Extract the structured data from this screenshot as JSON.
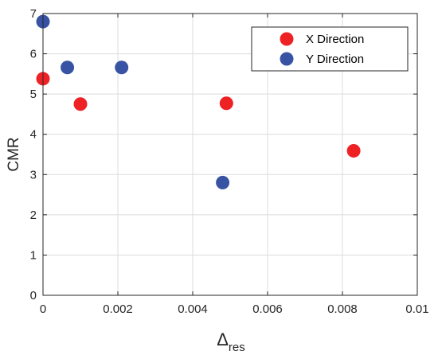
{
  "chart_data": {
    "type": "scatter",
    "xlabel_main": "Δ",
    "xlabel_sub": "res",
    "ylabel": "CMR",
    "xlim": [
      0,
      0.01
    ],
    "ylim": [
      0,
      7
    ],
    "x_ticks": [
      "0",
      "0.002",
      "0.004",
      "0.006",
      "0.008",
      "0.01"
    ],
    "y_ticks": [
      "0",
      "1",
      "2",
      "3",
      "4",
      "5",
      "6",
      "7"
    ],
    "x_tick_values": [
      0,
      0.002,
      0.004,
      0.006,
      0.008,
      0.01
    ],
    "y_tick_values": [
      0,
      1,
      2,
      3,
      4,
      5,
      6,
      7
    ],
    "grid": true,
    "legend_position": "top-right",
    "series": [
      {
        "name": "X Direction",
        "color": "#ee2125",
        "points": [
          {
            "x": 0.0,
            "y": 5.38
          },
          {
            "x": 0.001,
            "y": 4.75
          },
          {
            "x": 0.0049,
            "y": 4.77
          },
          {
            "x": 0.0083,
            "y": 3.59
          }
        ]
      },
      {
        "name": "Y Direction",
        "color": "#3953a4",
        "points": [
          {
            "x": 0.0,
            "y": 6.8
          },
          {
            "x": 0.00065,
            "y": 5.66
          },
          {
            "x": 0.0021,
            "y": 5.66
          },
          {
            "x": 0.0048,
            "y": 2.8
          }
        ]
      }
    ]
  }
}
